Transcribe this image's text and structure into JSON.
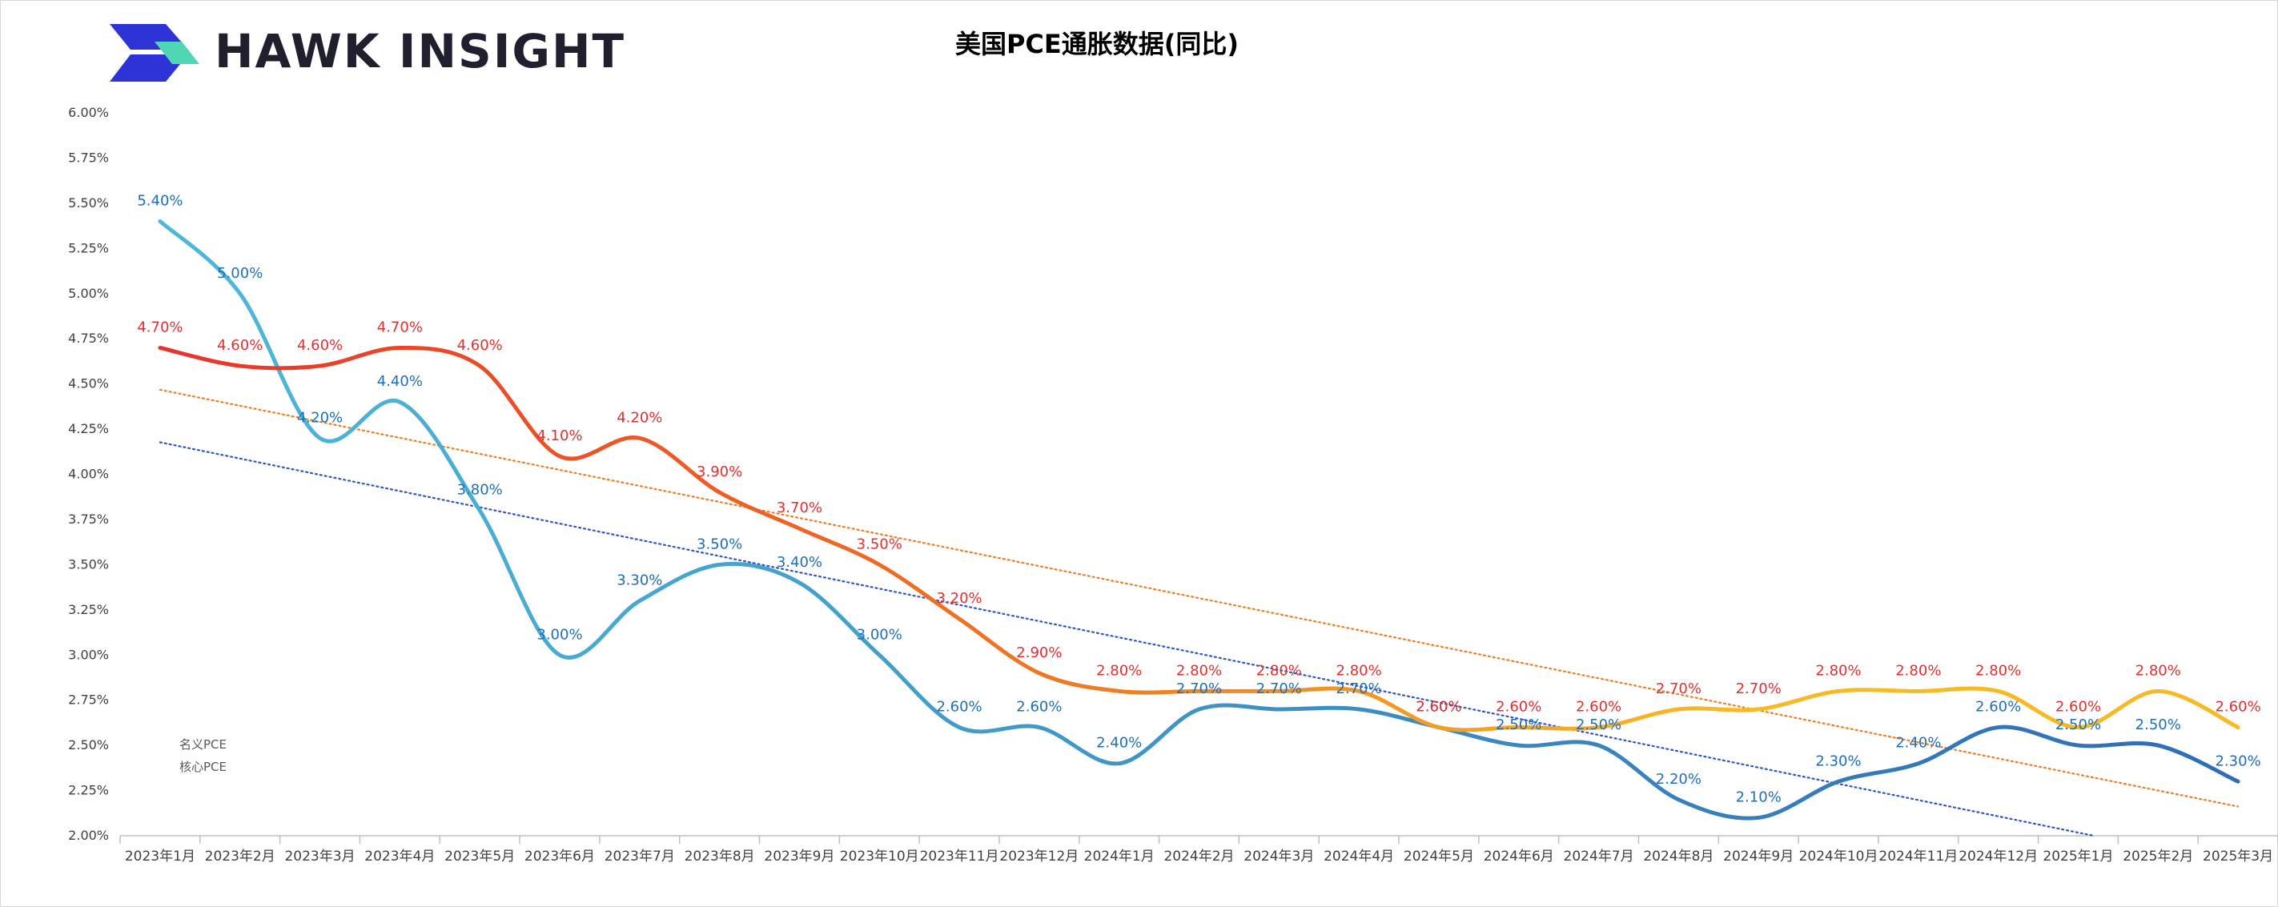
{
  "brand": {
    "name": "HAWK INSIGHT"
  },
  "colors": {
    "nominal_start": "#4fb9d9",
    "nominal_end": "#2e6db5",
    "core_start": "#e8322c",
    "core_mid": "#f07b22",
    "core_end": "#f7b924",
    "nominal_trend": "#2f55c8",
    "core_trend": "#ef7d22",
    "nominal_label": "#1f6fb8",
    "core_label": "#e03030"
  },
  "chart_data": {
    "type": "line",
    "title": "美国PCE通胀数据(同比)",
    "xlabel": "",
    "ylabel": "",
    "ylim": [
      2.0,
      6.0
    ],
    "y_ticks": [
      "2.00%",
      "2.25%",
      "2.50%",
      "2.75%",
      "3.00%",
      "3.25%",
      "3.50%",
      "3.75%",
      "4.00%",
      "4.25%",
      "4.50%",
      "4.75%",
      "5.00%",
      "5.25%",
      "5.50%",
      "5.75%",
      "6.00%"
    ],
    "categories": [
      "2023年1月",
      "2023年2月",
      "2023年3月",
      "2023年4月",
      "2023年5月",
      "2023年6月",
      "2023年7月",
      "2023年8月",
      "2023年9月",
      "2023年10月",
      "2023年11月",
      "2023年12月",
      "2024年1月",
      "2024年2月",
      "2024年3月",
      "2024年4月",
      "2024年5月",
      "2024年6月",
      "2024年7月",
      "2024年8月",
      "2024年9月",
      "2024年10月",
      "2024年11月",
      "2024年12月",
      "2025年1月",
      "2025年2月",
      "2025年3月"
    ],
    "series": [
      {
        "name": "名义PCE",
        "values": [
          5.4,
          5.0,
          4.2,
          4.4,
          3.8,
          3.0,
          3.3,
          3.5,
          3.4,
          3.0,
          2.6,
          2.6,
          2.4,
          2.7,
          2.7,
          2.7,
          2.6,
          2.5,
          2.5,
          2.2,
          2.1,
          2.3,
          2.4,
          2.6,
          2.5,
          2.5,
          2.3
        ],
        "labels": [
          "5.40%",
          "5.00%",
          "4.20%",
          "4.40%",
          "3.80%",
          "3.00%",
          "3.30%",
          "3.50%",
          "3.40%",
          "3.00%",
          "2.60%",
          "2.60%",
          "2.40%",
          "2.70%",
          "2.70%",
          "2.70%",
          "2.60%",
          "2.50%",
          "2.50%",
          "2.20%",
          "2.10%",
          "2.30%",
          "2.40%",
          "2.60%",
          "2.50%",
          "2.50%",
          "2.30%"
        ]
      },
      {
        "name": "核心PCE",
        "values": [
          4.7,
          4.6,
          4.6,
          4.7,
          4.6,
          4.1,
          4.2,
          3.9,
          3.7,
          3.5,
          3.2,
          2.9,
          2.8,
          2.8,
          2.8,
          2.8,
          2.6,
          2.6,
          2.6,
          2.7,
          2.7,
          2.8,
          2.8,
          2.8,
          2.6,
          2.8,
          2.6
        ],
        "labels": [
          "4.70%",
          "4.60%",
          "4.60%",
          "4.70%",
          "4.60%",
          "4.10%",
          "4.20%",
          "3.90%",
          "3.70%",
          "3.50%",
          "3.20%",
          "2.90%",
          "2.80%",
          "2.80%",
          "2.80%",
          "2.80%",
          "2.60%",
          "2.60%",
          "2.60%",
          "2.70%",
          "2.70%",
          "2.80%",
          "2.80%",
          "2.80%",
          "2.60%",
          "2.80%",
          "2.60%"
        ]
      }
    ],
    "trendlines": "linear, dotted, one per series",
    "legend": {
      "position": "bottom-left",
      "items": [
        "名义PCE",
        "核心PCE"
      ]
    },
    "grid": false
  }
}
